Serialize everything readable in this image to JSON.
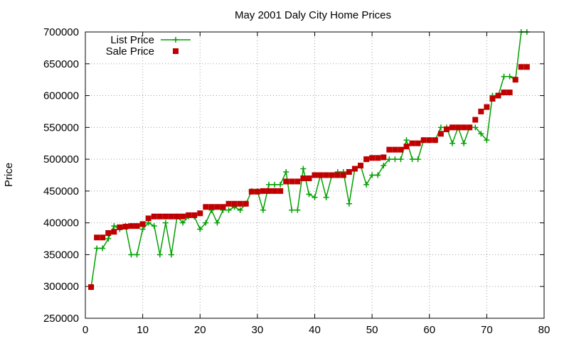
{
  "chart_data": {
    "type": "line",
    "title": "May 2001 Daly City Home Prices",
    "xlabel": "",
    "ylabel": "Price",
    "xlim": [
      0,
      80
    ],
    "ylim": [
      250000,
      700000
    ],
    "xticks": [
      0,
      10,
      20,
      30,
      40,
      50,
      60,
      70,
      80
    ],
    "yticks": [
      250000,
      300000,
      350000,
      400000,
      450000,
      500000,
      550000,
      600000,
      650000,
      700000
    ],
    "grid": true,
    "legend_position": "top-left",
    "series": [
      {
        "name": "List Price",
        "style": "linespoints",
        "marker": "plus",
        "color": "#00a000",
        "x": [
          1,
          2,
          3,
          4,
          5,
          6,
          7,
          8,
          9,
          10,
          11,
          12,
          13,
          14,
          15,
          16,
          17,
          18,
          19,
          20,
          21,
          22,
          23,
          24,
          25,
          26,
          27,
          28,
          29,
          30,
          31,
          32,
          33,
          34,
          35,
          36,
          37,
          38,
          39,
          40,
          41,
          42,
          43,
          44,
          45,
          46,
          47,
          48,
          49,
          50,
          51,
          52,
          53,
          54,
          55,
          56,
          57,
          58,
          59,
          60,
          61,
          62,
          63,
          64,
          65,
          66,
          67,
          68,
          69,
          70,
          71,
          72,
          73,
          74,
          75,
          76,
          77
        ],
        "y": [
          299000,
          360000,
          360000,
          375000,
          395000,
          390000,
          395000,
          350000,
          350000,
          390000,
          400000,
          395000,
          350000,
          400000,
          350000,
          410000,
          400000,
          410000,
          410000,
          390000,
          400000,
          420000,
          400000,
          420000,
          420000,
          425000,
          420000,
          430000,
          450000,
          450000,
          420000,
          460000,
          460000,
          460000,
          480000,
          420000,
          420000,
          485000,
          445000,
          440000,
          475000,
          440000,
          475000,
          480000,
          480000,
          430000,
          485000,
          490000,
          460000,
          475000,
          475000,
          490000,
          500000,
          500000,
          500000,
          530000,
          500000,
          500000,
          530000,
          530000,
          530000,
          550000,
          550000,
          525000,
          550000,
          525000,
          550000,
          550000,
          540000,
          530000,
          600000,
          600000,
          630000,
          630000,
          625000,
          700000,
          700000
        ]
      },
      {
        "name": "Sale Price",
        "style": "points",
        "marker": "square",
        "color": "#c00000",
        "x": [
          1,
          2,
          3,
          4,
          5,
          6,
          7,
          8,
          9,
          10,
          11,
          12,
          13,
          14,
          15,
          16,
          17,
          18,
          19,
          20,
          21,
          22,
          23,
          24,
          25,
          26,
          27,
          28,
          29,
          30,
          31,
          32,
          33,
          34,
          35,
          36,
          37,
          38,
          39,
          40,
          41,
          42,
          43,
          44,
          45,
          46,
          47,
          48,
          49,
          50,
          51,
          52,
          53,
          54,
          55,
          56,
          57,
          58,
          59,
          60,
          61,
          62,
          63,
          64,
          65,
          66,
          67,
          68,
          69,
          70,
          71,
          72,
          73,
          74,
          75,
          76,
          77
        ],
        "y": [
          299000,
          377000,
          377000,
          384000,
          386000,
          393000,
          394000,
          395000,
          395000,
          398000,
          407000,
          410000,
          410000,
          410000,
          410000,
          410000,
          410000,
          412000,
          412000,
          415000,
          425000,
          425000,
          425000,
          425000,
          430000,
          430000,
          430000,
          430000,
          449000,
          449000,
          450000,
          450000,
          450000,
          450000,
          465000,
          465000,
          465000,
          470000,
          470000,
          475000,
          475000,
          475000,
          475000,
          475000,
          475000,
          480000,
          485000,
          490000,
          500000,
          502000,
          502000,
          503000,
          515000,
          515000,
          515000,
          520000,
          525000,
          525000,
          530000,
          530000,
          530000,
          540000,
          547000,
          550000,
          550000,
          550000,
          550000,
          562000,
          575000,
          582000,
          595000,
          600000,
          605000,
          605000,
          625000,
          645000,
          645000
        ]
      }
    ]
  }
}
